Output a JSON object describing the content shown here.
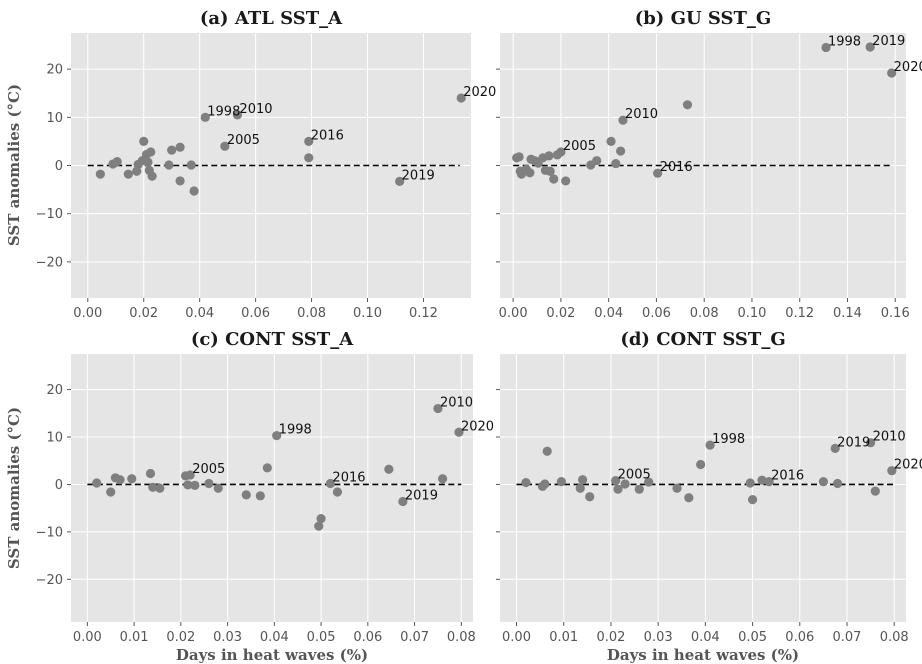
{
  "chart_data": [
    {
      "type": "scatter",
      "title": "(a) ATL SST_A",
      "xlabel": "",
      "ylabel": "SST anomalies (°C)",
      "xlim": [
        -0.006,
        0.137
      ],
      "ylim": [
        -27.5,
        27.5
      ],
      "xticks": [
        0.0,
        0.02,
        0.04,
        0.06,
        0.08,
        0.1,
        0.12
      ],
      "xtick_labels": [
        "0.00",
        "0.02",
        "0.04",
        "0.06",
        "0.08",
        "0.10",
        "0.12"
      ],
      "yticks": [
        -20,
        -10,
        0,
        10,
        20
      ],
      "ytick_labels": [
        "−20",
        "−10",
        "0",
        "10",
        "20"
      ],
      "grid": true,
      "reference_line": {
        "y": 0,
        "x_range": [
          0.0,
          0.133
        ]
      },
      "points": [
        {
          "x": 0.0045,
          "y": -1.8
        },
        {
          "x": 0.009,
          "y": 0.3
        },
        {
          "x": 0.0105,
          "y": 0.8
        },
        {
          "x": 0.0145,
          "y": -1.8
        },
        {
          "x": 0.0175,
          "y": -1.2
        },
        {
          "x": 0.018,
          "y": 0.2
        },
        {
          "x": 0.02,
          "y": 5.0
        },
        {
          "x": 0.0195,
          "y": 1.0
        },
        {
          "x": 0.021,
          "y": 2.3
        },
        {
          "x": 0.0215,
          "y": 0.7
        },
        {
          "x": 0.022,
          "y": -1.0
        },
        {
          "x": 0.0225,
          "y": 2.8
        },
        {
          "x": 0.023,
          "y": -2.2
        },
        {
          "x": 0.029,
          "y": 0.1
        },
        {
          "x": 0.03,
          "y": 3.2
        },
        {
          "x": 0.033,
          "y": 3.8
        },
        {
          "x": 0.033,
          "y": -3.2
        },
        {
          "x": 0.037,
          "y": 0.1
        },
        {
          "x": 0.038,
          "y": -5.3
        },
        {
          "x": 0.042,
          "y": 10.0
        },
        {
          "x": 0.049,
          "y": 4.0
        },
        {
          "x": 0.0535,
          "y": 10.5
        },
        {
          "x": 0.079,
          "y": 5.0
        },
        {
          "x": 0.079,
          "y": 1.6
        },
        {
          "x": 0.1115,
          "y": -3.3
        },
        {
          "x": 0.1335,
          "y": 14.0
        }
      ],
      "annotations": [
        {
          "label": "1998",
          "x": 0.042,
          "y": 10.0
        },
        {
          "label": "2010",
          "x": 0.0535,
          "y": 10.5
        },
        {
          "label": "2005",
          "x": 0.049,
          "y": 4.0
        },
        {
          "label": "2016",
          "x": 0.079,
          "y": 5.0
        },
        {
          "label": "2019",
          "x": 0.1115,
          "y": -3.3
        },
        {
          "label": "2020",
          "x": 0.1335,
          "y": 14.0
        }
      ]
    },
    {
      "type": "scatter",
      "title": "(b) GU SST_G",
      "xlabel": "",
      "ylabel": "",
      "xlim": [
        -0.0055,
        0.1645
      ],
      "ylim": [
        -27.5,
        27.5
      ],
      "xticks": [
        0.0,
        0.02,
        0.04,
        0.06,
        0.08,
        0.1,
        0.12,
        0.14,
        0.16
      ],
      "xtick_labels": [
        "0.00",
        "0.02",
        "0.04",
        "0.06",
        "0.08",
        "0.10",
        "0.12",
        "0.14",
        "0.16"
      ],
      "yticks": [
        -20,
        -10,
        0,
        10,
        20
      ],
      "ytick_labels": [
        "",
        "",
        "",
        "",
        ""
      ],
      "grid": true,
      "reference_line": {
        "y": 0,
        "x_range": [
          0.0,
          0.158
        ]
      },
      "points": [
        {
          "x": 0.0015,
          "y": 1.6
        },
        {
          "x": 0.0025,
          "y": 1.8
        },
        {
          "x": 0.003,
          "y": -1.2
        },
        {
          "x": 0.0035,
          "y": -1.8
        },
        {
          "x": 0.0055,
          "y": -0.8
        },
        {
          "x": 0.007,
          "y": -1.5
        },
        {
          "x": 0.0075,
          "y": 1.3
        },
        {
          "x": 0.009,
          "y": 1.0
        },
        {
          "x": 0.0105,
          "y": 0.5
        },
        {
          "x": 0.0125,
          "y": 1.6
        },
        {
          "x": 0.0135,
          "y": -1.0
        },
        {
          "x": 0.015,
          "y": 2.0
        },
        {
          "x": 0.0155,
          "y": -1.2
        },
        {
          "x": 0.017,
          "y": -2.8
        },
        {
          "x": 0.0185,
          "y": 2.2
        },
        {
          "x": 0.02,
          "y": 2.8
        },
        {
          "x": 0.022,
          "y": -3.2
        },
        {
          "x": 0.0325,
          "y": 0.1
        },
        {
          "x": 0.035,
          "y": 1.0
        },
        {
          "x": 0.041,
          "y": 5.0
        },
        {
          "x": 0.043,
          "y": 0.4
        },
        {
          "x": 0.045,
          "y": 3.0
        },
        {
          "x": 0.046,
          "y": 9.4
        },
        {
          "x": 0.0605,
          "y": -1.6
        },
        {
          "x": 0.073,
          "y": 12.6
        },
        {
          "x": 0.131,
          "y": 24.5
        },
        {
          "x": 0.1495,
          "y": 24.6
        },
        {
          "x": 0.1585,
          "y": 19.2
        }
      ],
      "annotations": [
        {
          "label": "2005",
          "x": 0.02,
          "y": 2.8
        },
        {
          "label": "2010",
          "x": 0.046,
          "y": 9.4
        },
        {
          "label": "2016",
          "x": 0.0605,
          "y": -1.6
        },
        {
          "label": "1998",
          "x": 0.131,
          "y": 24.5
        },
        {
          "label": "2019",
          "x": 0.1495,
          "y": 24.6
        },
        {
          "label": "2020",
          "x": 0.1585,
          "y": 19.2
        }
      ]
    },
    {
      "type": "scatter",
      "title": "(c) CONT SST_A",
      "xlabel": "Days in heat waves (%)",
      "ylabel": "SST anomalies (°C)",
      "xlim": [
        -0.0035,
        0.0825
      ],
      "ylim": [
        -29.0,
        27.5
      ],
      "xticks": [
        0.0,
        0.01,
        0.02,
        0.03,
        0.04,
        0.05,
        0.06,
        0.07,
        0.08
      ],
      "xtick_labels": [
        "0.00",
        "0.01",
        "0.02",
        "0.03",
        "0.04",
        "0.05",
        "0.06",
        "0.07",
        "0.08"
      ],
      "yticks": [
        -20,
        -10,
        0,
        10,
        20
      ],
      "ytick_labels": [
        "−20",
        "−10",
        "0",
        "10",
        "20"
      ],
      "grid": true,
      "reference_line": {
        "y": 0,
        "x_range": [
          0.0,
          0.08
        ]
      },
      "points": [
        {
          "x": 0.002,
          "y": 0.3
        },
        {
          "x": 0.005,
          "y": -1.6
        },
        {
          "x": 0.006,
          "y": 1.4
        },
        {
          "x": 0.007,
          "y": 1.0
        },
        {
          "x": 0.0095,
          "y": 1.2
        },
        {
          "x": 0.0135,
          "y": 2.3
        },
        {
          "x": 0.014,
          "y": -0.6
        },
        {
          "x": 0.0155,
          "y": -0.8
        },
        {
          "x": 0.021,
          "y": 1.8
        },
        {
          "x": 0.0215,
          "y": -0.1
        },
        {
          "x": 0.022,
          "y": 2.0
        },
        {
          "x": 0.023,
          "y": -0.2
        },
        {
          "x": 0.026,
          "y": 0.2
        },
        {
          "x": 0.028,
          "y": -0.8
        },
        {
          "x": 0.034,
          "y": -2.2
        },
        {
          "x": 0.037,
          "y": -2.4
        },
        {
          "x": 0.0385,
          "y": 3.5
        },
        {
          "x": 0.0405,
          "y": 10.3
        },
        {
          "x": 0.0495,
          "y": -8.8
        },
        {
          "x": 0.05,
          "y": -7.2
        },
        {
          "x": 0.052,
          "y": 0.2
        },
        {
          "x": 0.0535,
          "y": -1.6
        },
        {
          "x": 0.0645,
          "y": 3.2
        },
        {
          "x": 0.0675,
          "y": -3.6
        },
        {
          "x": 0.075,
          "y": 16.0
        },
        {
          "x": 0.076,
          "y": 1.2
        },
        {
          "x": 0.0795,
          "y": 11.0
        }
      ],
      "annotations": [
        {
          "label": "2005",
          "x": 0.022,
          "y": 2.0
        },
        {
          "label": "1998",
          "x": 0.0405,
          "y": 10.3
        },
        {
          "label": "2016",
          "x": 0.052,
          "y": 0.2
        },
        {
          "label": "2019",
          "x": 0.0675,
          "y": -3.6
        },
        {
          "label": "2010",
          "x": 0.075,
          "y": 16.0
        },
        {
          "label": "2020",
          "x": 0.0795,
          "y": 11.0
        }
      ]
    },
    {
      "type": "scatter",
      "title": "(d) CONT SST_G",
      "xlabel": "Days in heat waves (%)",
      "ylabel": "",
      "xlim": [
        -0.0035,
        0.0825
      ],
      "ylim": [
        -29.0,
        27.5
      ],
      "xticks": [
        0.0,
        0.01,
        0.02,
        0.03,
        0.04,
        0.05,
        0.06,
        0.07,
        0.08
      ],
      "xtick_labels": [
        "0.00",
        "0.01",
        "0.02",
        "0.03",
        "0.04",
        "0.05",
        "0.06",
        "0.07",
        "0.08"
      ],
      "yticks": [
        -20,
        -10,
        0,
        10,
        20
      ],
      "ytick_labels": [
        "",
        "",
        "",
        "",
        ""
      ],
      "grid": true,
      "reference_line": {
        "y": 0,
        "x_range": [
          0.0,
          0.08
        ]
      },
      "points": [
        {
          "x": 0.002,
          "y": 0.4
        },
        {
          "x": 0.0055,
          "y": -0.4
        },
        {
          "x": 0.006,
          "y": 0.1
        },
        {
          "x": 0.0065,
          "y": 7.0
        },
        {
          "x": 0.0095,
          "y": 0.6
        },
        {
          "x": 0.0135,
          "y": -0.8
        },
        {
          "x": 0.014,
          "y": 1.0
        },
        {
          "x": 0.0155,
          "y": -2.6
        },
        {
          "x": 0.021,
          "y": 0.8
        },
        {
          "x": 0.0215,
          "y": -1.0
        },
        {
          "x": 0.023,
          "y": 0.1
        },
        {
          "x": 0.026,
          "y": -1.0
        },
        {
          "x": 0.028,
          "y": 0.5
        },
        {
          "x": 0.034,
          "y": -0.8
        },
        {
          "x": 0.0365,
          "y": -2.8
        },
        {
          "x": 0.039,
          "y": 4.2
        },
        {
          "x": 0.041,
          "y": 8.3
        },
        {
          "x": 0.0495,
          "y": 0.3
        },
        {
          "x": 0.05,
          "y": -3.2
        },
        {
          "x": 0.052,
          "y": 0.9
        },
        {
          "x": 0.0535,
          "y": 0.6
        },
        {
          "x": 0.065,
          "y": 0.6
        },
        {
          "x": 0.0675,
          "y": 7.6
        },
        {
          "x": 0.068,
          "y": 0.2
        },
        {
          "x": 0.075,
          "y": 8.8
        },
        {
          "x": 0.076,
          "y": -1.4
        },
        {
          "x": 0.0795,
          "y": 2.9
        }
      ],
      "annotations": [
        {
          "label": "2005",
          "x": 0.021,
          "y": 0.8
        },
        {
          "label": "1998",
          "x": 0.041,
          "y": 8.3
        },
        {
          "label": "2016",
          "x": 0.0535,
          "y": 0.6
        },
        {
          "label": "2019",
          "x": 0.0675,
          "y": 7.6
        },
        {
          "label": "2010",
          "x": 0.075,
          "y": 8.8
        },
        {
          "label": "2020",
          "x": 0.0795,
          "y": 2.9
        }
      ]
    }
  ],
  "colors": {
    "panel_background": "#e5e5e5",
    "grid": "#ffffff",
    "point": "#7f7f7f",
    "reference_line": "#000000",
    "tick_text": "#555555",
    "title_text": "#1a1a1a"
  }
}
